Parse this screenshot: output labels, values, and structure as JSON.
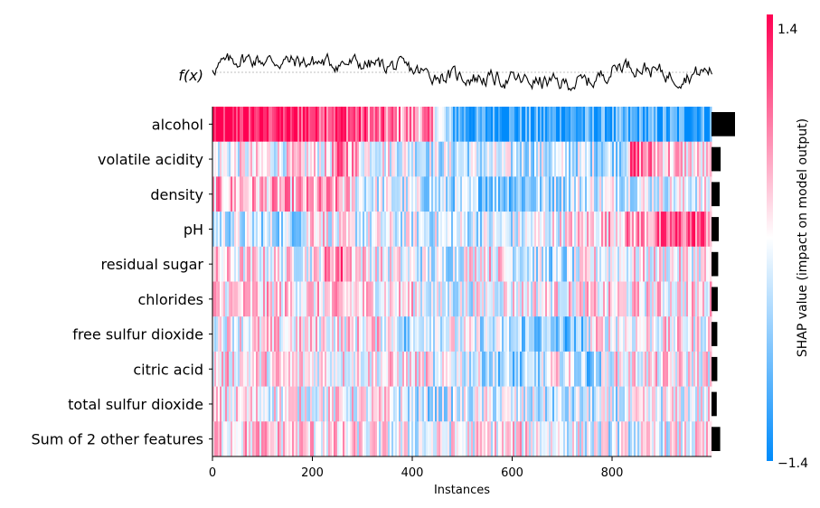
{
  "chart_data": {
    "type": "heatmap",
    "subtype": "shap-heatmap",
    "fx_label": "f(x)",
    "xlabel": "Instances",
    "x_ticks": [
      0,
      200,
      400,
      600,
      800
    ],
    "x_range": [
      0,
      1000
    ],
    "features": [
      "alcohol",
      "volatile acidity",
      "density",
      "pH",
      "residual sugar",
      "chlorides",
      "free sulfur dioxide",
      "citric acid",
      "total sulfur dioxide",
      "Sum of 2 other features"
    ],
    "feature_importance": [
      0.49,
      0.19,
      0.17,
      0.15,
      0.14,
      0.13,
      0.12,
      0.12,
      0.11,
      0.18
    ],
    "colorbar": {
      "label": "SHAP value (impact on model output)",
      "max_label": "1.4",
      "min_label": "−1.4",
      "max": 1.4,
      "min": -1.4,
      "color_low": "#008bfb",
      "color_mid": "#ffffff",
      "color_high": "#ff0052"
    },
    "fx_profile": {
      "description_points_x": [
        0,
        60,
        120,
        200,
        280,
        360,
        440,
        520,
        600,
        700,
        760,
        820,
        880,
        930,
        1000
      ],
      "values": [
        0.2,
        0.55,
        0.45,
        0.4,
        0.35,
        0.25,
        -0.1,
        -0.2,
        -0.3,
        -0.45,
        -0.35,
        0.35,
        0.1,
        -0.2,
        0.1
      ]
    }
  }
}
